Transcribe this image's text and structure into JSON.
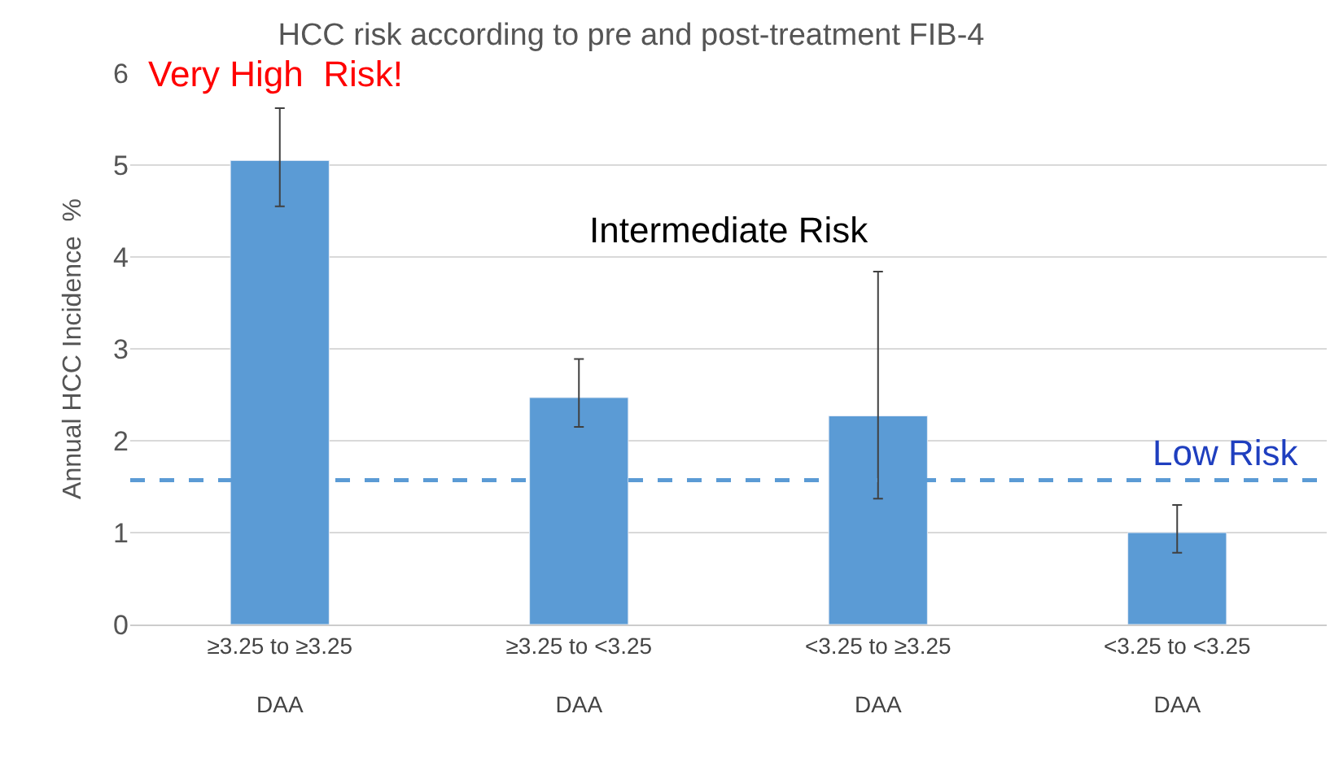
{
  "chart_data": {
    "type": "bar",
    "title": "HCC risk according to pre and post-treatment FIB-4",
    "ylabel": "Annual HCC Incidence  %",
    "categories": [
      "≥3.25 to ≥3.25\nDAA",
      "≥3.25 to <3.25\nDAA",
      "<3.25 to ≥3.25\nDAA",
      "<3.25 to <3.25\nDAA"
    ],
    "values": [
      5.05,
      2.47,
      2.27,
      1.0
    ],
    "color": "#5b9bd5",
    "errors": [
      [
        4.55,
        5.62
      ],
      [
        2.15,
        2.89
      ],
      [
        1.37,
        3.84
      ],
      [
        0.78,
        1.3
      ]
    ],
    "ylim": [
      0,
      6
    ],
    "yticks": [
      0,
      1,
      2,
      3,
      4,
      5,
      6
    ],
    "grid": "y",
    "ref_lines": [
      {
        "axis": "y",
        "value": 1.57,
        "label": "Low Risk",
        "color": "#5b9bd5",
        "line_style": "dashed"
      }
    ],
    "annotations": [
      "Very High  Risk!",
      "Intermediate Risk"
    ]
  }
}
